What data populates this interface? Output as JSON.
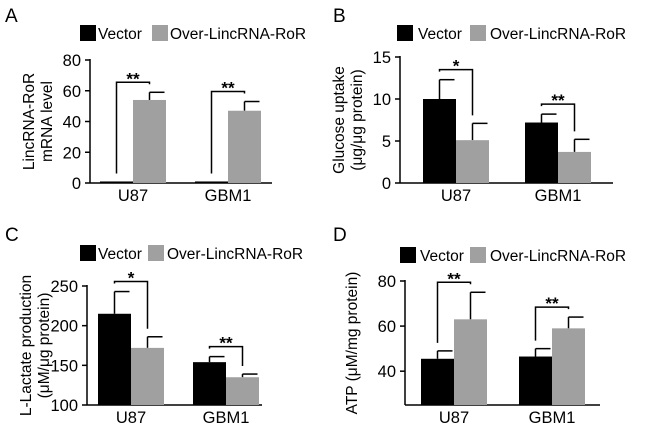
{
  "chart_data": [
    {
      "panel": "A",
      "type": "bar",
      "categories": [
        "U87",
        "GBM1"
      ],
      "ylabel": [
        "LincRNA-RoR",
        "mRNA level"
      ],
      "ylim": [
        0,
        80
      ],
      "yticks": [
        0,
        20,
        40,
        60,
        80
      ],
      "series": [
        {
          "name": "Vector",
          "color": "#000000",
          "values": [
            1,
            1
          ],
          "errors": [
            1,
            1
          ]
        },
        {
          "name": "Over-LincRNA-RoR",
          "color": "#a0a0a0",
          "values": [
            54,
            47
          ],
          "errors": [
            59,
            53
          ]
        }
      ],
      "significance": [
        "**",
        "**"
      ]
    },
    {
      "panel": "B",
      "type": "bar",
      "categories": [
        "U87",
        "GBM1"
      ],
      "ylabel": [
        "Glucose uptake",
        "(μg/μg protein)"
      ],
      "ylim": [
        0,
        15
      ],
      "yticks": [
        0,
        5,
        10,
        15
      ],
      "series": [
        {
          "name": "Vector",
          "color": "#000000",
          "values": [
            10,
            7.2
          ],
          "errors": [
            12.3,
            8.2
          ]
        },
        {
          "name": "Over-LincRNA-RoR",
          "color": "#a0a0a0",
          "values": [
            5.1,
            3.7
          ],
          "errors": [
            7.1,
            5.2
          ]
        }
      ],
      "significance": [
        "*",
        "**"
      ]
    },
    {
      "panel": "C",
      "type": "bar",
      "categories": [
        "U87",
        "GBM1"
      ],
      "ylabel": [
        "L-Lactate production",
        "(μM/μg protein)"
      ],
      "ylim": [
        100,
        250
      ],
      "yticks": [
        100,
        150,
        200,
        250
      ],
      "series": [
        {
          "name": "Vector",
          "color": "#000000",
          "values": [
            215,
            154
          ],
          "errors": [
            243,
            161
          ]
        },
        {
          "name": "Over-LincRNA-RoR",
          "color": "#a0a0a0",
          "values": [
            172,
            135
          ],
          "errors": [
            186,
            139
          ]
        }
      ],
      "significance": [
        "*",
        "**"
      ]
    },
    {
      "panel": "D",
      "type": "bar",
      "categories": [
        "U87",
        "GBM1"
      ],
      "ylabel": [
        "ATP (μM/mg protein)"
      ],
      "ylim": [
        25,
        80
      ],
      "yticks": [
        40,
        60,
        80
      ],
      "series": [
        {
          "name": "Vector",
          "color": "#000000",
          "values": [
            45.5,
            46.5
          ],
          "errors": [
            49,
            50
          ]
        },
        {
          "name": "Over-LincRNA-RoR",
          "color": "#a0a0a0",
          "values": [
            63,
            59
          ],
          "errors": [
            75,
            64
          ]
        }
      ],
      "significance": [
        "**",
        "**"
      ]
    }
  ]
}
